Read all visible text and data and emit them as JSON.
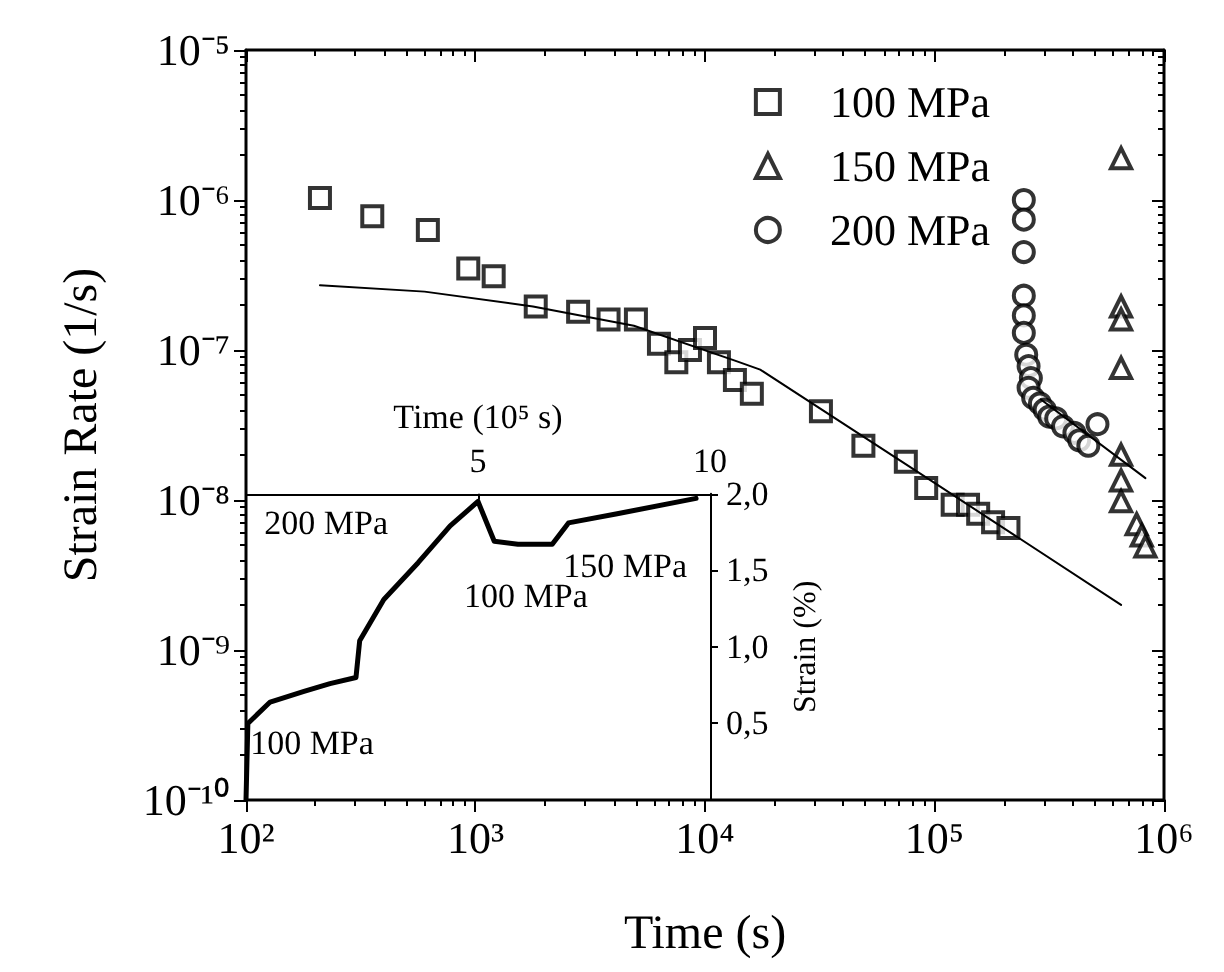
{
  "chart_data": [
    {
      "type": "scatter",
      "xlabel": "Time (s)",
      "ylabel": "Strain Rate (1/s)",
      "log": "xy",
      "legend": "top right",
      "grid": false,
      "xlim": [
        100,
        1000000
      ],
      "ylim": [
        1e-10,
        1e-05
      ],
      "xticks": [
        {
          "value": 100,
          "label": "10²"
        },
        {
          "value": 1000,
          "label": "10³"
        },
        {
          "value": 10000,
          "label": "10⁴"
        },
        {
          "value": 100000,
          "label": "10⁵"
        },
        {
          "value": 1000000,
          "label": "10⁶"
        }
      ],
      "yticks": [
        {
          "value": 1e-10,
          "label": "10⁻¹⁰"
        },
        {
          "value": 1e-09,
          "label": "10⁻⁹"
        },
        {
          "value": 1e-08,
          "label": "10⁻⁸"
        },
        {
          "value": 1e-07,
          "label": "10⁻⁷"
        },
        {
          "value": 1e-06,
          "label": "10⁻⁶"
        },
        {
          "value": 1e-05,
          "label": "10⁻⁵"
        }
      ],
      "series": [
        {
          "name": "100 MPa",
          "color": "#000000",
          "marker": "square",
          "x": [
            210,
            355,
            620,
            930,
            1200,
            1830,
            2800,
            3800,
            5000,
            6300,
            7500,
            8600,
            10000,
            11500,
            13500,
            16000,
            32000,
            49000,
            75000,
            92000,
            120000,
            140000,
            155000,
            180000,
            210000
          ],
          "values": [
            1.03e-06,
            7.8e-07,
            6.3e-07,
            3.5e-07,
            3.1e-07,
            1.95e-07,
            1.8e-07,
            1.6e-07,
            1.6e-07,
            1.1e-07,
            8.3e-08,
            1e-07,
            1.2e-07,
            8.3e-08,
            6.3e-08,
            5.1e-08,
            3.9e-08,
            2.3e-08,
            1.8e-08,
            1.2e-08,
            9.3e-09,
            9.3e-09,
            8.1e-09,
            7.1e-09,
            6.5e-09
          ]
        },
        {
          "name": "150 MPa",
          "color": "#000000",
          "marker": "triangle",
          "x": [
            650000,
            650000,
            650000,
            650000,
            650000,
            650000,
            650000,
            760000,
            800000,
            830000
          ],
          "values": [
            1.9e-06,
            1.95e-07,
            1.6e-07,
            7.6e-08,
            2e-08,
            1.35e-08,
            9.8e-09,
            6.9e-09,
            5.8e-09,
            4.9e-09
          ]
        },
        {
          "name": "200 MPa",
          "color": "#000000",
          "marker": "circle",
          "x": [
            245000,
            245000,
            245000,
            245000,
            245000,
            245000,
            251000,
            257000,
            263000,
            257000,
            269000,
            288000,
            302000,
            316000,
            339000,
            363000,
            407000,
            427000,
            468000,
            513000
          ],
          "values": [
            1e-06,
            7.4e-07,
            4.5e-07,
            2.3e-07,
            1.7e-07,
            1.3e-07,
            9.3e-08,
            7.8e-08,
            6.5e-08,
            5.6e-08,
            4.8e-08,
            4.4e-08,
            4e-08,
            3.6e-08,
            3.5e-08,
            3.1e-08,
            2.8e-08,
            2.5e-08,
            2.3e-08,
            3.2e-08
          ]
        },
        {
          "type": "line",
          "color": "#000000",
          "marker": "none",
          "x": [
            210,
            600,
            1780,
            4900,
            13500,
            17400,
            100000,
            650000
          ],
          "values": [
            2.7e-07,
            2.45e-07,
            1.95e-07,
            1.45e-07,
            8.5e-08,
            7.4e-08,
            1.3e-08,
            2e-09
          ]
        },
        {
          "type": "line",
          "color": "#000000",
          "marker": "none",
          "x": [
            290000,
            830000
          ],
          "values": [
            4.7e-08,
            1.4e-08
          ]
        }
      ]
    },
    {
      "type": "line",
      "xlabel": "Time (10⁵ s)",
      "ylabel": "Strain (%)",
      "xlim": [
        0,
        10
      ],
      "ylim": [
        0,
        2.0
      ],
      "xticks": [
        5,
        10
      ],
      "yticks": [
        {
          "value": 0.5,
          "label": "0,5"
        },
        {
          "value": 1.0,
          "label": "1,0"
        },
        {
          "value": 1.5,
          "label": "1,5"
        },
        {
          "value": 2.0,
          "label": "2,0"
        }
      ],
      "series": [
        {
          "color": "#000000",
          "x": [
            0,
            0.04,
            0.52,
            1.25,
            1.81,
            2.37,
            2.45,
            2.97,
            3.71,
            4.4,
            5.0,
            5.35,
            5.86,
            6.6,
            6.95,
            8.0,
            9.7
          ],
          "values": [
            0,
            0.5,
            0.64,
            0.71,
            0.76,
            0.8,
            1.04,
            1.31,
            1.55,
            1.79,
            1.95,
            1.69,
            1.67,
            1.67,
            1.81,
            1.87,
            1.97
          ]
        }
      ],
      "annotations": [
        {
          "text": "200 MPa",
          "x": 3.71,
          "y": 1.55
        },
        {
          "text": "100 MPa",
          "x": 5.86,
          "y": 1.67
        },
        {
          "text": "150 MPa",
          "x": 8.0,
          "y": 1.87
        },
        {
          "text": "100 MPa",
          "x": 1.25,
          "y": 0.71
        }
      ]
    }
  ]
}
